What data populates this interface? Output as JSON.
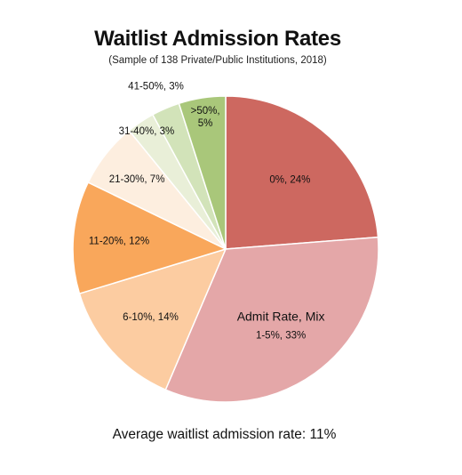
{
  "title": "Waitlist Admission Rates",
  "subtitle": "(Sample of 138 Private/Public Institutions, 2018)",
  "footer": "Average waitlist admission rate: 11%",
  "chart_data": {
    "type": "pie",
    "start": "12 o'clock, clockwise",
    "slices": [
      {
        "label": "0%, 24%",
        "category": "0%",
        "value": 24,
        "color": "#cd6860"
      },
      {
        "label": "1-5%, 33%",
        "title": "Admit Rate, Mix",
        "category": "1-5%",
        "value": 33,
        "color": "#e4a7a8"
      },
      {
        "label": "6-10%, 14%",
        "category": "6-10%",
        "value": 14,
        "color": "#fccca1"
      },
      {
        "label": "11-20%, 12%",
        "category": "11-20%",
        "value": 12,
        "color": "#f9a75b"
      },
      {
        "label": "21-30%, 7%",
        "category": "21-30%",
        "value": 7,
        "color": "#fdeedf"
      },
      {
        "label": "31-40%, 3%",
        "category": "31-40%",
        "value": 3,
        "color": "#e9efd8"
      },
      {
        "label": "41-50%, 3%",
        "category": "41-50%",
        "value": 3,
        "color": "#d2e3b9"
      },
      {
        "label": ">50%, 5%",
        "category": ">50%",
        "value": 5,
        "color": "#a9c77a",
        "lines": [
          ">50%,",
          "5%"
        ]
      }
    ]
  }
}
